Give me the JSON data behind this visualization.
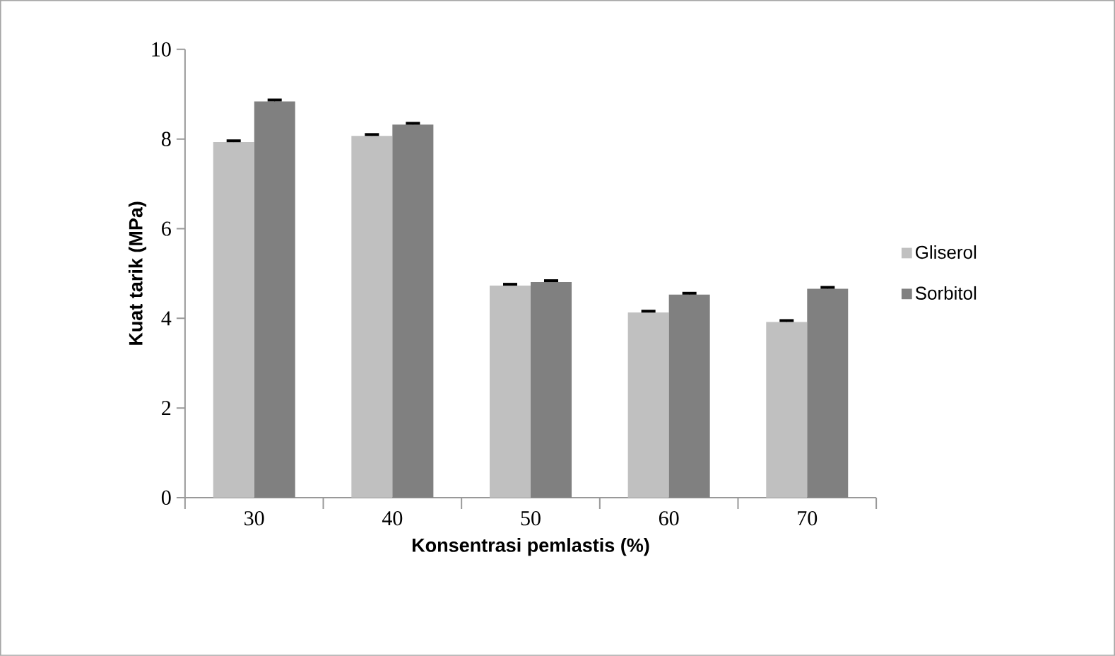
{
  "chart_data": {
    "type": "bar",
    "xlabel": "Konsentrasi pemlastis (%)",
    "ylabel": "Kuat tarik (MPa)",
    "categories": [
      "30",
      "40",
      "50",
      "60",
      "70"
    ],
    "series": [
      {
        "name": "Gliserol",
        "color": "#c0c0c0",
        "values": [
          7.93,
          8.07,
          4.73,
          4.13,
          3.92
        ],
        "errors": [
          0.03,
          0.03,
          0.03,
          0.03,
          0.03
        ]
      },
      {
        "name": "Sorbitol",
        "color": "#808080",
        "values": [
          8.84,
          8.32,
          4.81,
          4.53,
          4.66
        ],
        "errors": [
          0.03,
          0.03,
          0.03,
          0.03,
          0.03
        ]
      }
    ],
    "ylim": [
      0,
      10
    ],
    "yticks": [
      0,
      2,
      4,
      6,
      8,
      10
    ],
    "grid": false,
    "legend": "right"
  }
}
